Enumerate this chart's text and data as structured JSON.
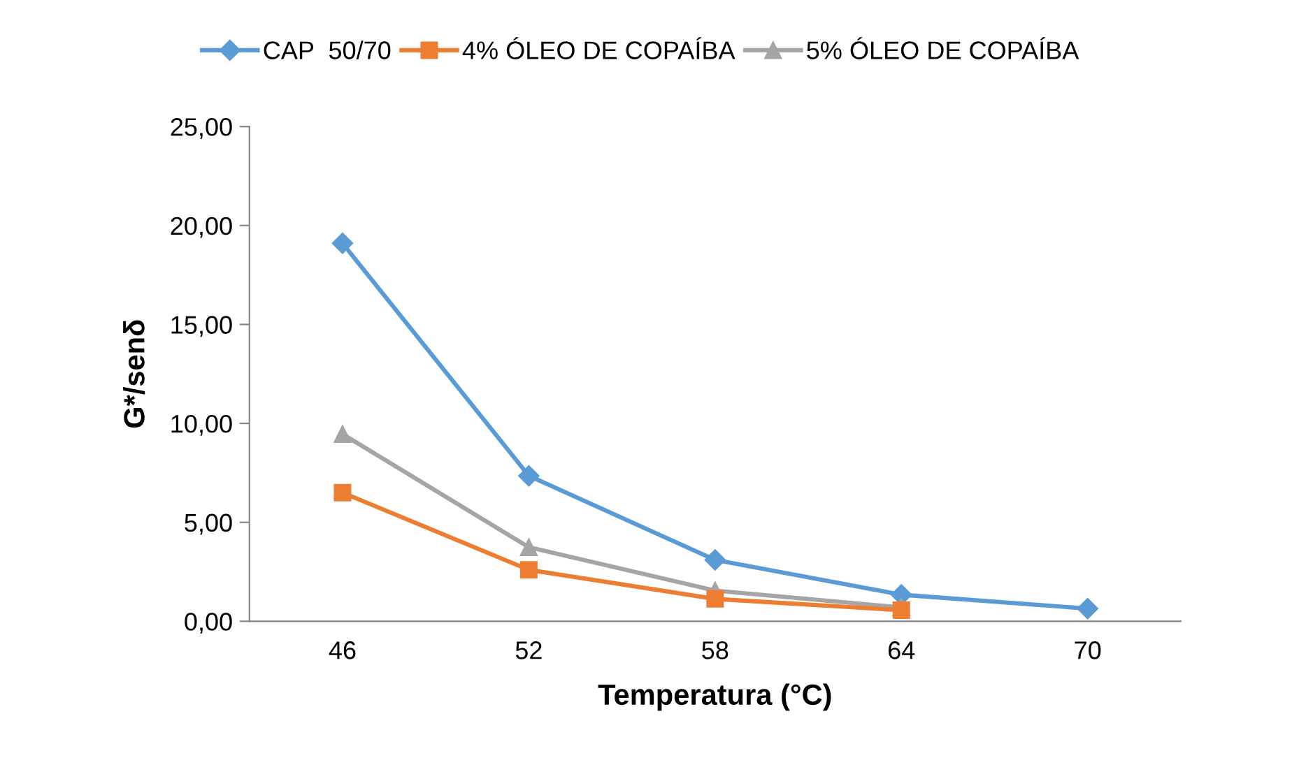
{
  "chart_data": {
    "type": "line",
    "xlabel": "Temperatura (°C)",
    "ylabel": "G*/senδ",
    "categories": [
      "46",
      "52",
      "58",
      "64",
      "70"
    ],
    "series": [
      {
        "name": "CAP  50/70",
        "color": "#5b9bd5",
        "marker": "diamond",
        "values": [
          19.1,
          7.35,
          3.1,
          1.34,
          0.64
        ]
      },
      {
        "name": "4% ÓLEO DE COPAÍBA",
        "color": "#ed7d31",
        "marker": "square",
        "values": [
          6.5,
          2.6,
          1.13,
          0.56,
          null
        ]
      },
      {
        "name": "5% ÓLEO DE COPAÍBA",
        "color": "#a5a5a5",
        "marker": "triangle",
        "values": [
          9.46,
          3.74,
          1.55,
          0.7,
          null
        ]
      }
    ],
    "ylim": [
      0,
      25
    ],
    "yticks": [
      {
        "value": 0,
        "label": "0,00"
      },
      {
        "value": 5,
        "label": "5,00"
      },
      {
        "value": 10,
        "label": "10,00"
      },
      {
        "value": 15,
        "label": "15,00"
      },
      {
        "value": 20,
        "label": "20,00"
      },
      {
        "value": 25,
        "label": "25,00"
      }
    ],
    "legend": "top",
    "line_style": "solid"
  }
}
